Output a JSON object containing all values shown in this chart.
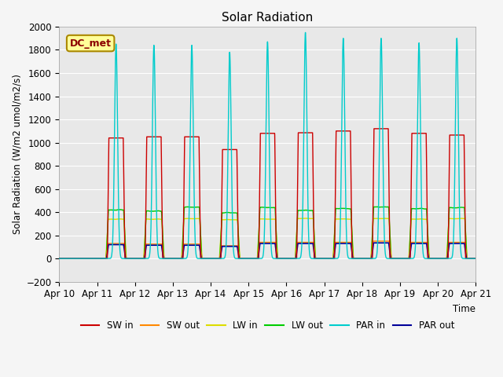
{
  "title": "Solar Radiation",
  "ylabel": "Solar Radiation (W/m2 umol/m2/s)",
  "xlabel": "Time",
  "ylim": [
    -200,
    2000
  ],
  "xlim": [
    0,
    11
  ],
  "x_tick_labels": [
    "Apr 10",
    "Apr 11",
    "Apr 12",
    "Apr 13",
    "Apr 14",
    "Apr 15",
    "Apr 16",
    "Apr 17",
    "Apr 18",
    "Apr 19",
    "Apr 20",
    "Apr 21"
  ],
  "annotation_text": "DC_met",
  "annotation_box_facecolor": "#FFFF99",
  "annotation_box_edgecolor": "#AA8800",
  "background_color": "#E8E8E8",
  "grid_color": "#FFFFFF",
  "legend_colors": {
    "SW in": "#CC0000",
    "SW out": "#FF8800",
    "LW in": "#DDDD00",
    "LW out": "#00CC00",
    "PAR in": "#00CCCC",
    "PAR out": "#000099"
  },
  "sw_in_peaks": [
    0,
    1040,
    1050,
    1050,
    940,
    1080,
    1085,
    1100,
    1120,
    1080,
    1065,
    0
  ],
  "sw_out_peaks": [
    0,
    130,
    125,
    125,
    110,
    140,
    140,
    140,
    150,
    140,
    140,
    0
  ],
  "par_in_peaks": [
    0,
    1850,
    1840,
    1840,
    1780,
    1870,
    1950,
    1900,
    1900,
    1860,
    1900,
    0
  ],
  "par_out_peaks": [
    0,
    120,
    115,
    115,
    105,
    130,
    130,
    130,
    135,
    130,
    130,
    0
  ],
  "lw_in_day": [
    0,
    340,
    340,
    345,
    335,
    340,
    345,
    340,
    345,
    340,
    345,
    0
  ],
  "lw_out_day": [
    0,
    420,
    410,
    445,
    395,
    440,
    415,
    430,
    445,
    430,
    440,
    0
  ]
}
